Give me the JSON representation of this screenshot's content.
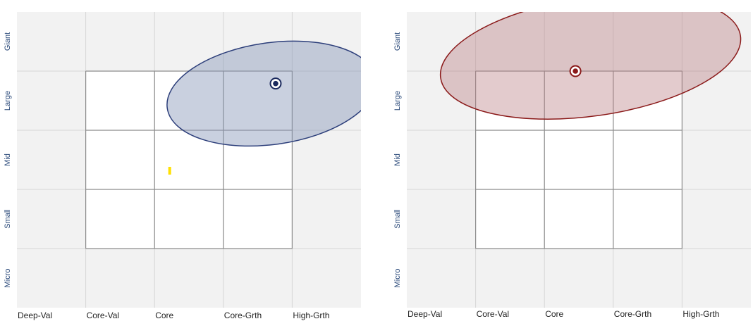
{
  "chart_data": [
    {
      "type": "style-box",
      "x_labels": [
        "Deep-Val",
        "Core-Val",
        "Core",
        "Core-Grth",
        "High-Grth"
      ],
      "y_labels": [
        "Giant",
        "Large",
        "Mid",
        "Small",
        "Micro"
      ],
      "xlim": [
        0,
        5
      ],
      "ylim": [
        0,
        5
      ],
      "grid": true,
      "zone": {
        "x_range": [
          1,
          4
        ],
        "y_range": [
          1,
          4
        ]
      },
      "ellipse": {
        "cx": 3.7,
        "cy": 3.62,
        "rx": 1.53,
        "ry": 0.86,
        "angle": -8,
        "fill": "#8796b8",
        "stroke": "#2c3e7a",
        "opacity": 0.45
      },
      "centroid": {
        "x": 3.76,
        "y": 3.79,
        "color": "#1b2a5e"
      },
      "marker": {
        "x": 2.22,
        "y": 2.31,
        "color": "#ffe000"
      }
    },
    {
      "type": "style-box",
      "x_labels": [
        "Deep-Val",
        "Core-Val",
        "Core",
        "Core-Grth",
        "High-Grth"
      ],
      "y_labels": [
        "Giant",
        "Large",
        "Mid",
        "Small",
        "Micro"
      ],
      "xlim": [
        0,
        5
      ],
      "ylim": [
        0,
        5
      ],
      "grid": true,
      "zone": {
        "x_range": [
          1,
          4
        ],
        "y_range": [
          1,
          4
        ]
      },
      "ellipse": {
        "cx": 2.67,
        "cy": 4.24,
        "rx": 2.2,
        "ry": 1.0,
        "angle": -8,
        "fill": "#b87c82",
        "stroke": "#8b1a1a",
        "opacity": 0.4
      },
      "centroid": {
        "x": 2.45,
        "y": 4.0,
        "color": "#8b1a1a"
      }
    }
  ]
}
